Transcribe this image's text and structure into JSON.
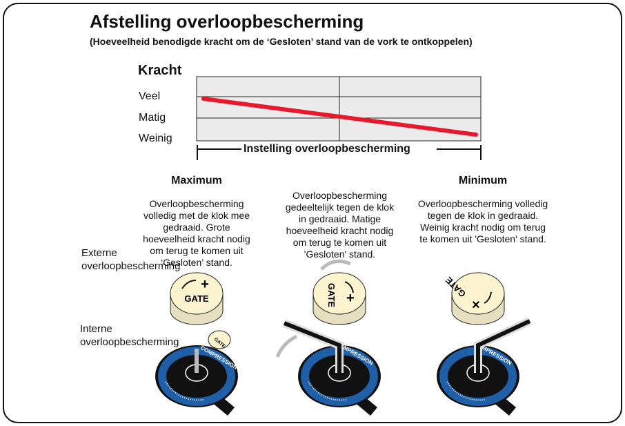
{
  "title": "Afstelling overloopbescherming",
  "subtitle": "(Hoeveelheid benodigde kracht om de ‘Gesloten’ stand van de vork te ontkoppelen)",
  "graph": {
    "ylabel": "Kracht",
    "levels": [
      "Veel",
      "Matig",
      "Weinig"
    ],
    "xlabel": "Instelling overloopbescherming",
    "line_color": "#e8192c",
    "trend": "decreasing from Veel (Maximum) to Weinig (Minimum)"
  },
  "columns": [
    {
      "heading": "Maximum",
      "text": "Overloopbescherming\nvolledig met de klok mee\ngedraaid. Grote\nhoeveelheid kracht nodig\nom terug te komen uit\n‘Gesloten’ stand."
    },
    {
      "heading": "",
      "text": "Overloopbescherming\ngedeeltelijk tegen de klok\nin gedraaid. Matige\nhoeveelheid kracht nodig\nom terug te komen uit\n'Gesloten' stand."
    },
    {
      "heading": "Minimum",
      "text": "Overloopbescherming volledig\ntegen de klok in gedraaid.\nWeinig kracht nodig om terug\nte komen uit 'Gesloten' stand."
    }
  ],
  "labels": {
    "external": "Externe\noverloopbescherming",
    "internal": "Interne\noverloopbescherming"
  },
  "knob": {
    "text": "GATE",
    "plus": "+"
  },
  "dial": {
    "text": "COMPRESSION",
    "text_short": "MPRESSION",
    "color": "#1f5fa8"
  }
}
